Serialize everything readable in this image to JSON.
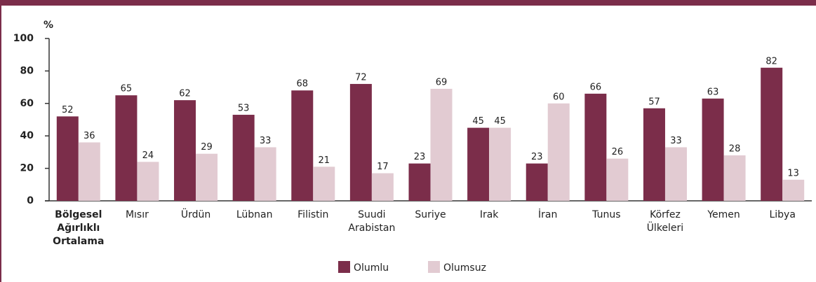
{
  "chart_data": {
    "type": "bar",
    "y_label": "%",
    "categories": [
      "Bölgesel Ağırlıklı Ortalama",
      "Mısır",
      "Ürdün",
      "Lübnan",
      "Filistin",
      "Suudi Arabistan",
      "Suriye",
      "Irak",
      "İran",
      "Tunus",
      "Körfez Ülkeleri",
      "Yemen",
      "Libya"
    ],
    "series": [
      {
        "name": "Olumlu",
        "color": "#7b2d4a",
        "values": [
          52,
          65,
          62,
          53,
          68,
          72,
          23,
          45,
          23,
          66,
          57,
          63,
          82
        ]
      },
      {
        "name": "Olumsuz",
        "color": "#e2cbd2",
        "values": [
          36,
          24,
          29,
          33,
          21,
          17,
          69,
          45,
          60,
          26,
          33,
          28,
          13
        ]
      }
    ],
    "ylim": [
      0,
      100
    ],
    "yticks": [
      0,
      20,
      40,
      60,
      80,
      100
    ],
    "grid": false
  }
}
